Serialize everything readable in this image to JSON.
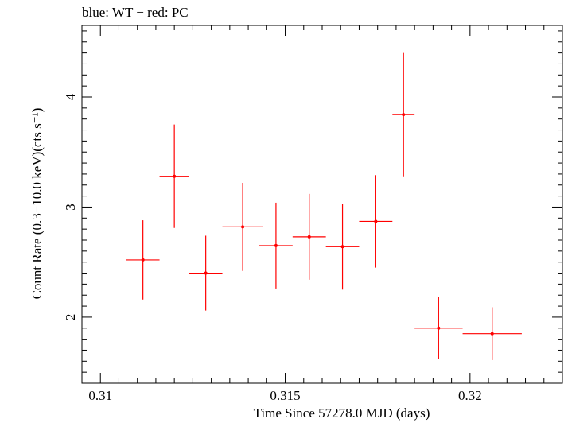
{
  "chart_data": {
    "type": "scatter",
    "title": "blue: WT − red: PC",
    "xlabel": "Time Since 57278.0 MJD (days)",
    "ylabel": "Count Rate (0.3−10.0 keV)(cts s⁻¹)",
    "xlim": [
      0.3095,
      0.3225
    ],
    "ylim": [
      1.4,
      4.65
    ],
    "x_ticks": [
      "0.31",
      "0.315",
      "0.32"
    ],
    "y_ticks": [
      "2",
      "3",
      "4"
    ],
    "series": [
      {
        "color": "#ff0000",
        "points": [
          {
            "x": 0.31115,
            "xerr": 0.00045,
            "y": 2.52,
            "yerr": 0.36
          },
          {
            "x": 0.312,
            "xerr": 0.0004,
            "y": 3.28,
            "yerr": 0.47
          },
          {
            "x": 0.31285,
            "xerr": 0.00045,
            "y": 2.4,
            "yerr": 0.34
          },
          {
            "x": 0.31385,
            "xerr": 0.00055,
            "y": 2.82,
            "yerr": 0.4
          },
          {
            "x": 0.31475,
            "xerr": 0.00045,
            "y": 2.65,
            "yerr": 0.39
          },
          {
            "x": 0.31565,
            "xerr": 0.00045,
            "y": 2.73,
            "yerr": 0.39
          },
          {
            "x": 0.31655,
            "xerr": 0.00045,
            "y": 2.64,
            "yerr": 0.39
          },
          {
            "x": 0.31745,
            "xerr": 0.00045,
            "y": 2.87,
            "yerr": 0.42
          },
          {
            "x": 0.3182,
            "xerr": 0.0003,
            "y": 3.84,
            "yerr": 0.56
          },
          {
            "x": 0.31915,
            "xerr": 0.00065,
            "y": 1.9,
            "yerr": 0.28
          },
          {
            "x": 0.3206,
            "xerr": 0.0008,
            "y": 1.85,
            "yerr": 0.24
          }
        ]
      }
    ]
  }
}
